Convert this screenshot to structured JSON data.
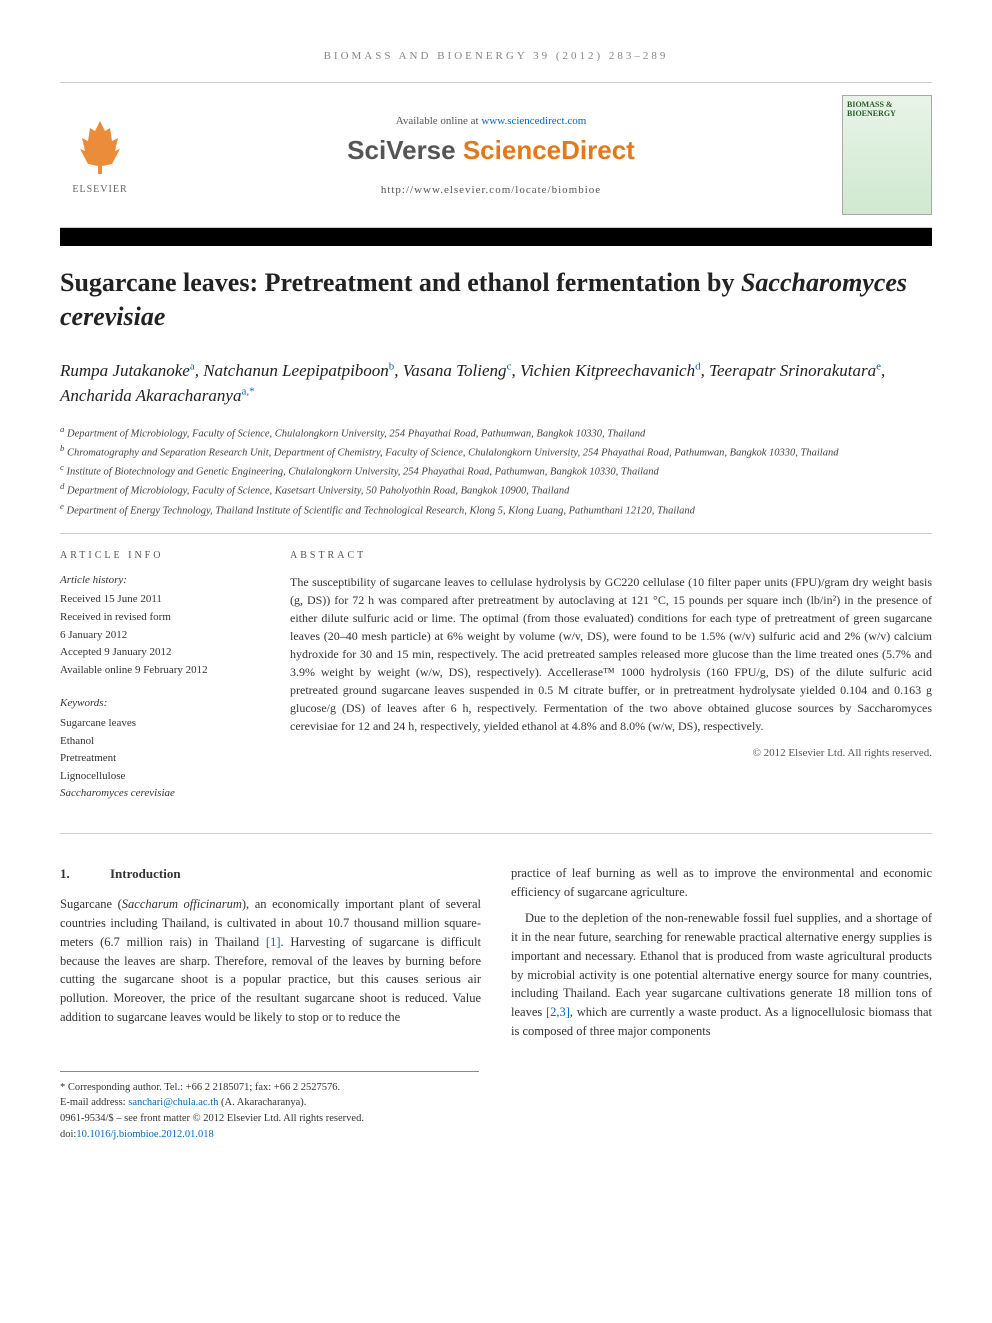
{
  "journal_header": "BIOMASS AND BIOENERGY 39 (2012) 283–289",
  "available_prefix": "Available online at ",
  "available_url": "www.sciencedirect.com",
  "sciverse_a": "SciVerse ",
  "sciverse_b": "ScienceDirect",
  "journal_url": "http://www.elsevier.com/locate/biombioe",
  "elsevier": "ELSEVIER",
  "cover_title": "BIOMASS & BIOENERGY",
  "title_a": "Sugarcane leaves: Pretreatment and ethanol fermentation by ",
  "title_b": "Saccharomyces cerevisiae",
  "authors": {
    "list": [
      {
        "name": "Rumpa Jutakanoke",
        "sup": "a"
      },
      {
        "name": "Natchanun Leepipatpiboon",
        "sup": "b"
      },
      {
        "name": "Vasana Tolieng",
        "sup": "c"
      },
      {
        "name": "Vichien Kitpreechavanich",
        "sup": "d"
      },
      {
        "name": "Teerapatr Srinorakutara",
        "sup": "e"
      },
      {
        "name": "Ancharida Akaracharanya",
        "sup": "a,*"
      }
    ]
  },
  "affiliations": [
    "a Department of Microbiology, Faculty of Science, Chulalongkorn University, 254 Phayathai Road, Pathumwan, Bangkok 10330, Thailand",
    "b Chromatography and Separation Research Unit, Department of Chemistry, Faculty of Science, Chulalongkorn University, 254 Phayathai Road, Pathumwan, Bangkok 10330, Thailand",
    "c Institute of Biotechnology and Genetic Engineering, Chulalongkorn University, 254 Phayathai Road, Pathumwan, Bangkok 10330, Thailand",
    "d Department of Microbiology, Faculty of Science, Kasetsart University, 50 Paholyothin Road, Bangkok 10900, Thailand",
    "e Department of Energy Technology, Thailand Institute of Scientific and Technological Research, Klong 5, Klong Luang, Pathumthani 12120, Thailand"
  ],
  "info": {
    "heading": "ARTICLE INFO",
    "history_head": "Article history:",
    "history": [
      "Received 15 June 2011",
      "Received in revised form",
      "6 January 2012",
      "Accepted 9 January 2012",
      "Available online 9 February 2012"
    ],
    "keywords_head": "Keywords:",
    "keywords": [
      "Sugarcane leaves",
      "Ethanol",
      "Pretreatment",
      "Lignocellulose",
      "Saccharomyces cerevisiae"
    ]
  },
  "abstract": {
    "heading": "ABSTRACT",
    "text": "The susceptibility of sugarcane leaves to cellulase hydrolysis by GC220 cellulase (10 filter paper units (FPU)/gram dry weight basis (g, DS)) for 72 h was compared after pretreatment by autoclaving at 121 °C, 15 pounds per square inch (lb/in²) in the presence of either dilute sulfuric acid or lime. The optimal (from those evaluated) conditions for each type of pretreatment of green sugarcane leaves (20–40 mesh particle) at 6% weight by volume (w/v, DS), were found to be 1.5% (w/v) sulfuric acid and 2% (w/v) calcium hydroxide for 30 and 15 min, respectively. The acid pretreated samples released more glucose than the lime treated ones (5.7% and 3.9% weight by weight (w/w, DS), respectively). Accellerase™ 1000 hydrolysis (160 FPU/g, DS) of the dilute sulfuric acid pretreated ground sugarcane leaves suspended in 0.5 M citrate buffer, or in pretreatment hydrolysate yielded 0.104 and 0.163 g glucose/g (DS) of leaves after 6 h, respectively. Fermentation of the two above obtained glucose sources by Saccharomyces cerevisiae for 12 and 24 h, respectively, yielded ethanol at 4.8% and 8.0% (w/w, DS), respectively.",
    "copyright": "© 2012 Elsevier Ltd. All rights reserved."
  },
  "section1": {
    "num": "1.",
    "title": "Introduction"
  },
  "body": {
    "col1": "Sugarcane (Saccharum officinarum), an economically important plant of several countries including Thailand, is cultivated in about 10.7 thousand million square-meters (6.7 million rais) in Thailand [1]. Harvesting of sugarcane is difficult because the leaves are sharp. Therefore, removal of the leaves by burning before cutting the sugarcane shoot is a popular practice, but this causes serious air pollution. Moreover, the price of the resultant sugarcane shoot is reduced. Value addition to sugarcane leaves would be likely to stop or to reduce the",
    "col2a": "practice of leaf burning as well as to improve the environmental and economic efficiency of sugarcane agriculture.",
    "col2b": "Due to the depletion of the non-renewable fossil fuel supplies, and a shortage of it in the near future, searching for renewable practical alternative energy supplies is important and necessary. Ethanol that is produced from waste agricultural products by microbial activity is one potential alternative energy source for many countries, including Thailand. Each year sugarcane cultivations generate 18 million tons of leaves [2,3], which are currently a waste product. As a lignocellulosic biomass that is composed of three major components"
  },
  "footnotes": {
    "corr": "* Corresponding author. Tel.: +66 2 2185071; fax: +66 2 2527576.",
    "email_label": "E-mail address: ",
    "email": "sanchari@chula.ac.th",
    "email_suffix": " (A. Akaracharanya).",
    "issn": "0961-9534/$ – see front matter © 2012 Elsevier Ltd. All rights reserved.",
    "doi_label": "doi:",
    "doi": "10.1016/j.biombioe.2012.01.018"
  }
}
